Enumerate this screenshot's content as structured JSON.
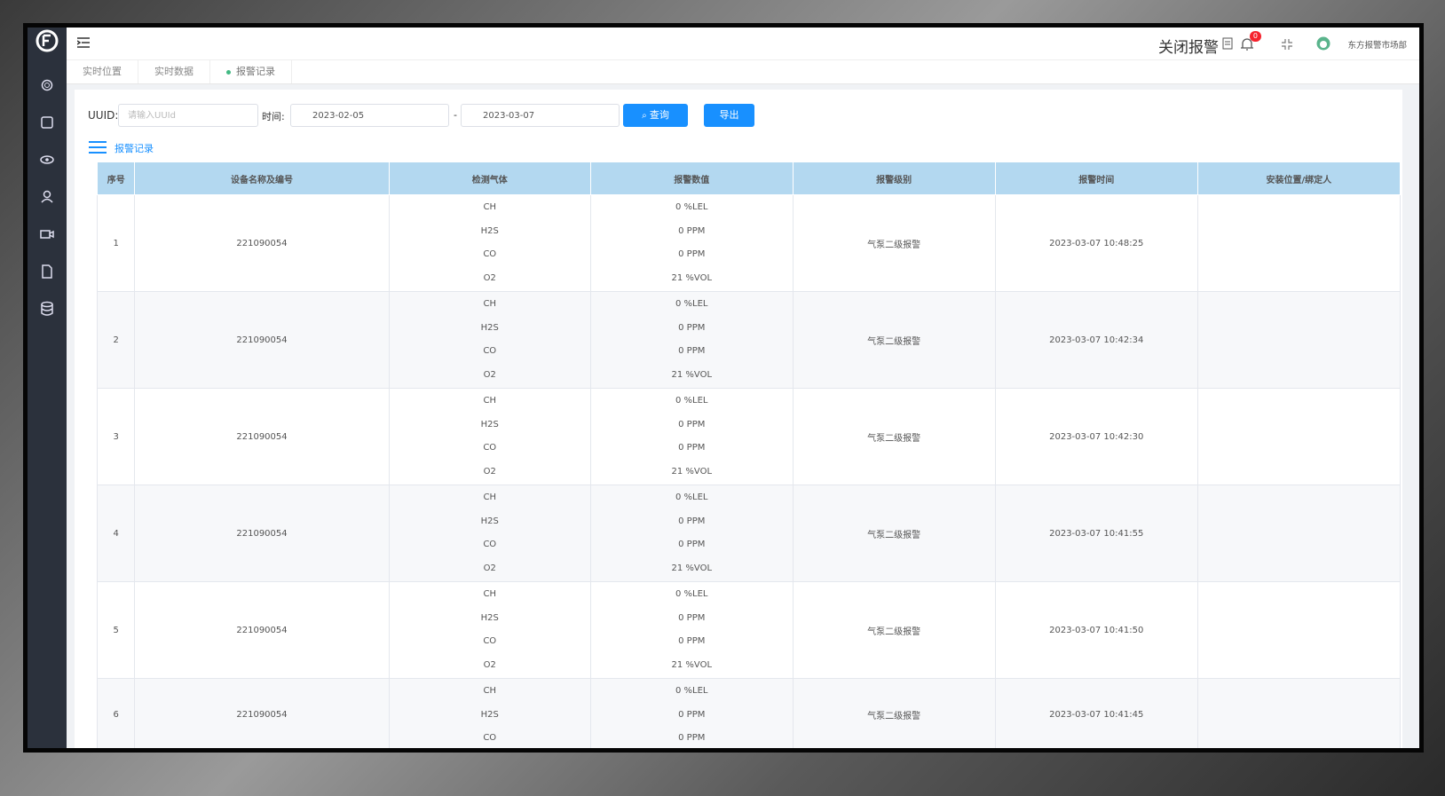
{
  "header": {
    "close_alarm": "关闭报警",
    "badge": "0",
    "user": "东方报警市场部"
  },
  "tabs": [
    "实时位置",
    "实时数据",
    "报警记录"
  ],
  "filter": {
    "uuid_label": "UUID:",
    "uuid_placeholder": "请输入UUId",
    "time_label": "时间:",
    "start_date": "2023-02-05",
    "separator": "-",
    "end_date": "2023-03-07",
    "query_button": "查询",
    "export_button": "导出"
  },
  "section_title": "报警记录",
  "table": {
    "columns": [
      "序号",
      "设备名称及编号",
      "检测气体",
      "报警数值",
      "报警级别",
      "报警时间",
      "安装位置/绑定人"
    ],
    "rows": [
      {
        "index": "1",
        "device": "221090054",
        "gases": [
          "CH",
          "H2S",
          "CO",
          "O2"
        ],
        "values": [
          "0 %LEL",
          "0 PPM",
          "0 PPM",
          "21 %VOL"
        ],
        "level": "气泵二级报警",
        "time": "2023-03-07 10:48:25"
      },
      {
        "index": "2",
        "device": "221090054",
        "gases": [
          "CH",
          "H2S",
          "CO",
          "O2"
        ],
        "values": [
          "0 %LEL",
          "0 PPM",
          "0 PPM",
          "21 %VOL"
        ],
        "level": "气泵二级报警",
        "time": "2023-03-07 10:42:34"
      },
      {
        "index": "3",
        "device": "221090054",
        "gases": [
          "CH",
          "H2S",
          "CO",
          "O2"
        ],
        "values": [
          "0 %LEL",
          "0 PPM",
          "0 PPM",
          "21 %VOL"
        ],
        "level": "气泵二级报警",
        "time": "2023-03-07 10:42:30"
      },
      {
        "index": "4",
        "device": "221090054",
        "gases": [
          "CH",
          "H2S",
          "CO",
          "O2"
        ],
        "values": [
          "0 %LEL",
          "0 PPM",
          "0 PPM",
          "21 %VOL"
        ],
        "level": "气泵二级报警",
        "time": "2023-03-07 10:41:55"
      },
      {
        "index": "5",
        "device": "221090054",
        "gases": [
          "CH",
          "H2S",
          "CO",
          "O2"
        ],
        "values": [
          "0 %LEL",
          "0 PPM",
          "0 PPM",
          "21 %VOL"
        ],
        "level": "气泵二级报警",
        "time": "2023-03-07 10:41:50"
      },
      {
        "index": "6",
        "device": "221090054",
        "gases": [
          "CH",
          "H2S",
          "CO"
        ],
        "values": [
          "0 %LEL",
          "0 PPM",
          "0 PPM"
        ],
        "level": "气泵二级报警",
        "time": "2023-03-07 10:41:45"
      }
    ]
  }
}
